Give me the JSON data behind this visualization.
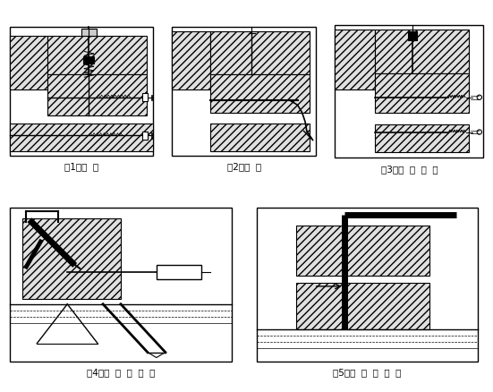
{
  "background": "#ffffff",
  "labels": [
    "（1）成  孔",
    "（2）清  孔",
    "（3）丙  酮  清  洗",
    "（4）注  入  胶  粘  剂",
    "（5）插  入  连  接  件"
  ],
  "label_fontsize": 7.5,
  "hatch_color": "#aaaaaa",
  "hatch_pattern": "////"
}
